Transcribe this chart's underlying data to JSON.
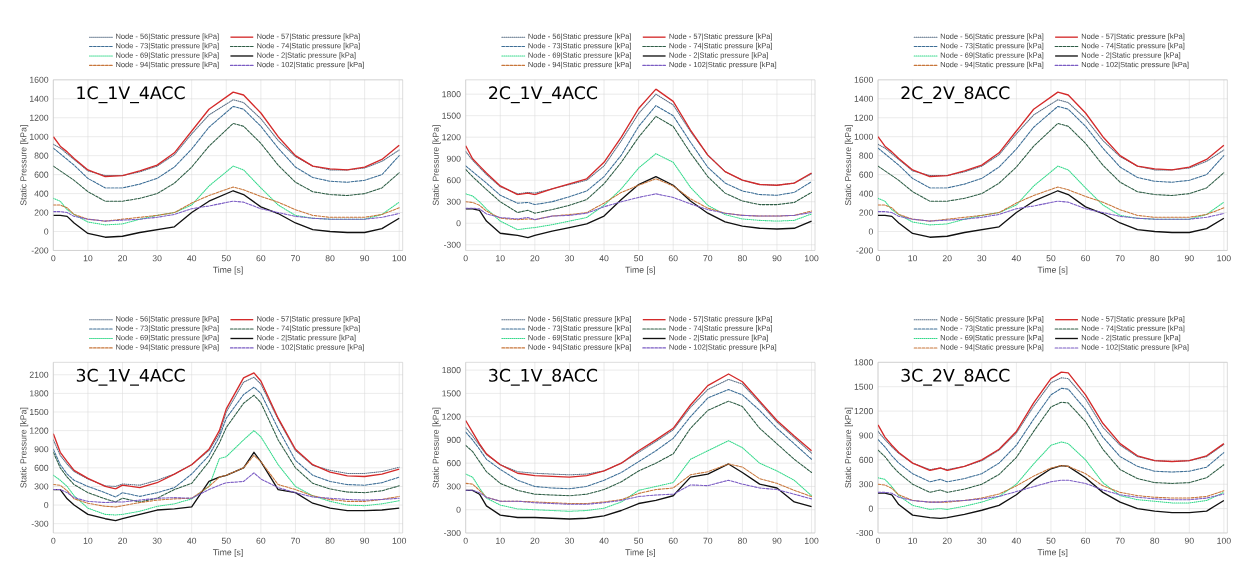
{
  "chart_data": [
    {
      "type": "line",
      "title": "1C_1V_4ACC",
      "xlabel": "Time [s]",
      "ylabel": "Static Pressure [kPa]",
      "grid": true,
      "legend": "top",
      "xlim": [
        0,
        101
      ],
      "ylim": [
        -200,
        1600
      ],
      "xticks": [
        0,
        10,
        20,
        30,
        40,
        50,
        60,
        70,
        80,
        90,
        100
      ],
      "yticks": [
        -200,
        0,
        200,
        400,
        600,
        800,
        1000,
        1200,
        1400,
        1600
      ],
      "x": [
        0,
        2,
        4,
        6,
        10,
        15,
        20,
        25,
        30,
        35,
        40,
        45,
        52,
        55,
        60,
        65,
        70,
        75,
        80,
        85,
        90,
        95,
        100
      ],
      "series": [
        {
          "name": "Node - 56|Static pressure [kPa]",
          "color": "#5a6f86",
          "line_style": "dotted",
          "values": [
            920,
            880,
            820,
            760,
            640,
            590,
            590,
            630,
            690,
            810,
            1030,
            1230,
            1390,
            1360,
            1190,
            960,
            790,
            690,
            650,
            650,
            670,
            740,
            860
          ]
        },
        {
          "name": "Node - 57|Static pressure [kPa]",
          "color": "#d42a2a",
          "line_style": "solid",
          "values": [
            1000,
            900,
            840,
            770,
            650,
            580,
            590,
            640,
            700,
            830,
            1060,
            1290,
            1470,
            1440,
            1250,
            1000,
            800,
            690,
            660,
            650,
            680,
            760,
            910
          ]
        },
        {
          "name": "Node - 73|Static pressure [kPa]",
          "color": "#3d6e96",
          "line_style": "dashed",
          "values": [
            880,
            820,
            760,
            700,
            560,
            460,
            460,
            500,
            560,
            680,
            870,
            1100,
            1320,
            1290,
            1110,
            880,
            680,
            570,
            530,
            520,
            540,
            600,
            800
          ]
        },
        {
          "name": "Node - 74|Static pressure [kPa]",
          "color": "#2e5d45",
          "line_style": "dashed",
          "values": [
            690,
            640,
            590,
            540,
            420,
            320,
            320,
            350,
            400,
            510,
            680,
            900,
            1140,
            1110,
            930,
            700,
            520,
            420,
            390,
            380,
            400,
            460,
            620
          ]
        },
        {
          "name": "Node - 69|Static pressure [kPa]",
          "color": "#33d98a",
          "line_style": "dotted",
          "values": [
            350,
            320,
            230,
            180,
            100,
            70,
            80,
            130,
            170,
            200,
            280,
            480,
            690,
            650,
            460,
            280,
            170,
            140,
            130,
            130,
            130,
            180,
            310
          ]
        },
        {
          "name": "Node - 2|Static pressure [kPa]",
          "color": "#111111",
          "line_style": "solid",
          "values": [
            170,
            170,
            160,
            90,
            -20,
            -60,
            -50,
            -10,
            20,
            50,
            200,
            320,
            430,
            390,
            260,
            190,
            90,
            20,
            0,
            -10,
            -10,
            30,
            140
          ]
        },
        {
          "name": "Node - 94|Static pressure [kPa]",
          "color": "#c8763a",
          "line_style": "dashed",
          "values": [
            280,
            280,
            250,
            180,
            130,
            110,
            130,
            150,
            170,
            200,
            300,
            380,
            470,
            440,
            370,
            310,
            230,
            170,
            150,
            150,
            150,
            180,
            250
          ]
        },
        {
          "name": "Node - 102|Static pressure [kPa]",
          "color": "#7b5cc4",
          "line_style": "dashed",
          "values": [
            210,
            210,
            200,
            160,
            130,
            110,
            120,
            130,
            150,
            180,
            240,
            270,
            320,
            310,
            240,
            200,
            160,
            140,
            130,
            130,
            130,
            150,
            190
          ]
        }
      ]
    },
    {
      "type": "line",
      "title": "2C_1V_4ACC",
      "xlabel": "Time [s]",
      "ylabel": "Static Pressure [kPa]",
      "grid": true,
      "legend": "top",
      "xlim": [
        0,
        101
      ],
      "ylim": [
        -380,
        2000
      ],
      "xticks": [
        0,
        10,
        20,
        30,
        40,
        50,
        60,
        70,
        80,
        90,
        100
      ],
      "yticks": [
        -300,
        0,
        300,
        600,
        900,
        1200,
        1500,
        1800
      ],
      "x": [
        0,
        2,
        4,
        6,
        10,
        15,
        18,
        20,
        25,
        30,
        35,
        40,
        45,
        50,
        55,
        60,
        65,
        70,
        75,
        80,
        85,
        90,
        95,
        100
      ],
      "series": [
        {
          "name": "Node - 56|Static pressure [kPa]",
          "color": "#5a6f86",
          "line_style": "dotted",
          "values": [
            1000,
            880,
            780,
            680,
            510,
            410,
            430,
            420,
            480,
            540,
            600,
            800,
            1150,
            1530,
            1800,
            1650,
            1280,
            950,
            720,
            600,
            540,
            530,
            560,
            690
          ]
        },
        {
          "name": "Node - 57|Static pressure [kPa]",
          "color": "#d42a2a",
          "line_style": "solid",
          "values": [
            1080,
            900,
            800,
            700,
            520,
            400,
            420,
            400,
            480,
            550,
            620,
            850,
            1200,
            1600,
            1870,
            1700,
            1300,
            950,
            720,
            600,
            540,
            530,
            560,
            700
          ]
        },
        {
          "name": "Node - 73|Static pressure [kPa]",
          "color": "#3d6e96",
          "line_style": "dashed",
          "values": [
            800,
            720,
            640,
            560,
            390,
            280,
            290,
            260,
            300,
            370,
            450,
            650,
            950,
            1350,
            1640,
            1500,
            1130,
            780,
            560,
            450,
            400,
            390,
            430,
            580
          ]
        },
        {
          "name": "Node - 74|Static pressure [kPa]",
          "color": "#2e5d45",
          "line_style": "dashed",
          "values": [
            750,
            650,
            560,
            470,
            300,
            150,
            180,
            140,
            190,
            250,
            330,
            550,
            850,
            1200,
            1490,
            1350,
            980,
            650,
            420,
            310,
            260,
            260,
            290,
            430
          ]
        },
        {
          "name": "Node - 69|Static pressure [kPa]",
          "color": "#33d98a",
          "line_style": "dotted",
          "values": [
            410,
            380,
            300,
            200,
            30,
            -90,
            -70,
            -60,
            -20,
            30,
            80,
            250,
            480,
            770,
            970,
            850,
            500,
            250,
            120,
            60,
            40,
            30,
            40,
            130
          ]
        },
        {
          "name": "Node - 2|Static pressure [kPa]",
          "color": "#111111",
          "line_style": "solid",
          "values": [
            200,
            200,
            180,
            30,
            -140,
            -170,
            -200,
            -170,
            -110,
            -60,
            -10,
            100,
            330,
            540,
            650,
            530,
            310,
            140,
            20,
            -40,
            -70,
            -80,
            -70,
            30
          ]
        },
        {
          "name": "Node - 94|Static pressure [kPa]",
          "color": "#c8763a",
          "line_style": "dashed",
          "values": [
            300,
            290,
            250,
            170,
            70,
            50,
            60,
            50,
            100,
            120,
            150,
            280,
            430,
            530,
            620,
            520,
            340,
            210,
            140,
            110,
            100,
            100,
            110,
            170
          ]
        },
        {
          "name": "Node - 102|Static pressure [kPa]",
          "color": "#7b5cc4",
          "line_style": "dashed",
          "values": [
            210,
            210,
            200,
            130,
            80,
            60,
            80,
            50,
            100,
            110,
            140,
            230,
            300,
            360,
            410,
            360,
            270,
            190,
            140,
            110,
            100,
            100,
            110,
            150
          ]
        }
      ]
    },
    {
      "type": "line",
      "title": "2C_2V_8ACC",
      "xlabel": "Time [s]",
      "ylabel": "Static Pressure [kPa]",
      "grid": true,
      "legend": "top",
      "xlim": [
        0,
        101
      ],
      "ylim": [
        -200,
        1600
      ],
      "xticks": [
        0,
        10,
        20,
        30,
        40,
        50,
        60,
        70,
        80,
        90,
        100
      ],
      "yticks": [
        -200,
        0,
        200,
        400,
        600,
        800,
        1000,
        1200,
        1400,
        1600
      ],
      "x": [
        0,
        2,
        4,
        6,
        10,
        15,
        20,
        25,
        30,
        35,
        40,
        45,
        52,
        55,
        60,
        65,
        70,
        75,
        80,
        85,
        90,
        95,
        100
      ],
      "series": [
        {
          "name": "Node - 56|Static pressure [kPa]",
          "color": "#5a6f86",
          "line_style": "dotted",
          "values": [
            920,
            880,
            820,
            760,
            640,
            590,
            590,
            630,
            690,
            810,
            1030,
            1230,
            1390,
            1360,
            1190,
            960,
            790,
            690,
            650,
            650,
            670,
            740,
            860
          ]
        },
        {
          "name": "Node - 57|Static pressure [kPa]",
          "color": "#d42a2a",
          "line_style": "solid",
          "values": [
            1000,
            900,
            840,
            770,
            650,
            580,
            590,
            640,
            700,
            830,
            1060,
            1290,
            1470,
            1440,
            1250,
            1000,
            800,
            690,
            660,
            650,
            680,
            760,
            910
          ]
        },
        {
          "name": "Node - 73|Static pressure [kPa]",
          "color": "#3d6e96",
          "line_style": "dashed",
          "values": [
            880,
            820,
            760,
            700,
            560,
            460,
            460,
            500,
            560,
            680,
            870,
            1100,
            1320,
            1290,
            1110,
            880,
            680,
            570,
            530,
            520,
            540,
            600,
            800
          ]
        },
        {
          "name": "Node - 74|Static pressure [kPa]",
          "color": "#2e5d45",
          "line_style": "dashed",
          "values": [
            690,
            640,
            590,
            540,
            420,
            320,
            320,
            350,
            400,
            510,
            680,
            900,
            1140,
            1110,
            930,
            700,
            520,
            420,
            390,
            380,
            400,
            460,
            620
          ]
        },
        {
          "name": "Node - 69|Static pressure [kPa]",
          "color": "#33d98a",
          "line_style": "dotted",
          "values": [
            350,
            320,
            230,
            180,
            100,
            70,
            80,
            130,
            170,
            200,
            280,
            480,
            690,
            650,
            460,
            280,
            170,
            140,
            130,
            130,
            130,
            180,
            310
          ]
        },
        {
          "name": "Node - 2|Static pressure [kPa]",
          "color": "#111111",
          "line_style": "solid",
          "values": [
            170,
            170,
            160,
            90,
            -20,
            -60,
            -50,
            -10,
            20,
            50,
            200,
            320,
            430,
            390,
            260,
            190,
            90,
            20,
            0,
            -10,
            -10,
            30,
            140
          ]
        },
        {
          "name": "Node - 94|Static pressure [kPa]",
          "color": "#c8763a",
          "line_style": "dashed",
          "values": [
            280,
            280,
            250,
            180,
            130,
            110,
            130,
            150,
            170,
            200,
            300,
            380,
            470,
            440,
            370,
            310,
            230,
            170,
            150,
            150,
            150,
            180,
            250
          ]
        },
        {
          "name": "Node - 102|Static pressure [kPa]",
          "color": "#7b5cc4",
          "line_style": "dashed",
          "values": [
            210,
            210,
            200,
            160,
            130,
            110,
            120,
            130,
            150,
            180,
            240,
            270,
            320,
            310,
            240,
            200,
            160,
            140,
            130,
            130,
            130,
            150,
            190
          ]
        }
      ]
    },
    {
      "type": "line",
      "title": "3C_1V_4ACC",
      "xlabel": "Time [s]",
      "ylabel": "Static Pressure [kPa]",
      "grid": true,
      "legend": "top",
      "xlim": [
        0,
        101
      ],
      "ylim": [
        -450,
        2300
      ],
      "xticks": [
        0,
        10,
        20,
        30,
        40,
        50,
        60,
        70,
        80,
        90,
        100
      ],
      "yticks": [
        -300,
        0,
        300,
        600,
        900,
        1200,
        1500,
        1800,
        2100
      ],
      "x": [
        0,
        2,
        4,
        6,
        10,
        15,
        18,
        20,
        25,
        30,
        35,
        40,
        45,
        48,
        50,
        55,
        58,
        60,
        65,
        70,
        75,
        80,
        85,
        90,
        95,
        100
      ],
      "series": [
        {
          "name": "Node - 56|Static pressure [kPa]",
          "color": "#5a6f86",
          "line_style": "dotted",
          "values": [
            1050,
            800,
            660,
            540,
            420,
            310,
            300,
            340,
            320,
            400,
            500,
            650,
            880,
            1150,
            1500,
            1980,
            2060,
            1950,
            1380,
            880,
            640,
            560,
            510,
            510,
            540,
            610
          ]
        },
        {
          "name": "Node - 57|Static pressure [kPa]",
          "color": "#d42a2a",
          "line_style": "solid",
          "values": [
            1150,
            850,
            700,
            560,
            430,
            300,
            260,
            320,
            280,
            360,
            500,
            650,
            900,
            1200,
            1550,
            2050,
            2130,
            2000,
            1400,
            900,
            650,
            530,
            470,
            460,
            500,
            580
          ]
        },
        {
          "name": "Node - 73|Static pressure [kPa]",
          "color": "#3d6e96",
          "line_style": "dashed",
          "values": [
            900,
            650,
            500,
            400,
            300,
            200,
            130,
            200,
            140,
            200,
            280,
            500,
            800,
            1100,
            1400,
            1780,
            1900,
            1800,
            1230,
            720,
            480,
            380,
            330,
            320,
            360,
            450
          ]
        },
        {
          "name": "Node - 74|Static pressure [kPa]",
          "color": "#2e5d45",
          "line_style": "dashed",
          "values": [
            850,
            600,
            450,
            330,
            200,
            100,
            50,
            110,
            50,
            110,
            250,
            350,
            700,
            1000,
            1250,
            1640,
            1770,
            1650,
            1050,
            600,
            350,
            260,
            210,
            200,
            230,
            310
          ]
        },
        {
          "name": "Node - 69|Static pressure [kPa]",
          "color": "#33d98a",
          "line_style": "dotted",
          "values": [
            480,
            400,
            300,
            150,
            -50,
            -150,
            -160,
            -150,
            -100,
            -20,
            20,
            100,
            300,
            750,
            780,
            1050,
            1200,
            1100,
            650,
            300,
            150,
            60,
            0,
            -10,
            20,
            70
          ]
        },
        {
          "name": "Node - 2|Static pressure [kPa]",
          "color": "#111111",
          "line_style": "solid",
          "values": [
            250,
            250,
            100,
            0,
            -150,
            -220,
            -250,
            -220,
            -150,
            -80,
            -60,
            -30,
            380,
            450,
            480,
            600,
            850,
            700,
            250,
            200,
            30,
            -50,
            -90,
            -90,
            -80,
            -50
          ]
        },
        {
          "name": "Node - 94|Static pressure [kPa]",
          "color": "#c8763a",
          "line_style": "dashed",
          "values": [
            330,
            320,
            230,
            100,
            30,
            -20,
            -30,
            -10,
            40,
            80,
            100,
            110,
            300,
            450,
            480,
            600,
            800,
            700,
            330,
            250,
            150,
            90,
            60,
            60,
            90,
            140
          ]
        },
        {
          "name": "Node - 102|Static pressure [kPa]",
          "color": "#7b5cc4",
          "line_style": "dashed",
          "values": [
            250,
            250,
            200,
            120,
            60,
            40,
            50,
            50,
            80,
            110,
            120,
            110,
            250,
            320,
            360,
            380,
            520,
            420,
            280,
            200,
            130,
            110,
            90,
            80,
            90,
            110
          ]
        }
      ]
    },
    {
      "type": "line",
      "title": "3C_1V_8ACC",
      "xlabel": "Time [s]",
      "ylabel": "Static Pressure [kPa]",
      "grid": true,
      "legend": "top",
      "xlim": [
        0,
        101
      ],
      "ylim": [
        -300,
        1900
      ],
      "xticks": [
        0,
        10,
        20,
        30,
        40,
        50,
        60,
        70,
        80,
        90,
        100
      ],
      "yticks": [
        -300,
        0,
        300,
        600,
        900,
        1200,
        1500,
        1800
      ],
      "x": [
        0,
        2,
        4,
        6,
        10,
        15,
        20,
        25,
        30,
        35,
        40,
        45,
        50,
        55,
        60,
        65,
        70,
        76,
        80,
        85,
        90,
        95,
        100
      ],
      "series": [
        {
          "name": "Node - 56|Static pressure [kPa]",
          "color": "#5a6f86",
          "line_style": "dotted",
          "values": [
            1060,
            950,
            830,
            710,
            580,
            490,
            470,
            460,
            450,
            460,
            500,
            600,
            740,
            880,
            1030,
            1320,
            1550,
            1680,
            1620,
            1380,
            1130,
            930,
            730
          ]
        },
        {
          "name": "Node - 57|Static pressure [kPa]",
          "color": "#d42a2a",
          "line_style": "solid",
          "values": [
            1150,
            1000,
            850,
            720,
            580,
            470,
            440,
            430,
            420,
            440,
            500,
            600,
            760,
            900,
            1050,
            1350,
            1600,
            1750,
            1650,
            1400,
            1150,
            950,
            760
          ]
        },
        {
          "name": "Node - 73|Static pressure [kPa]",
          "color": "#3d6e96",
          "line_style": "dashed",
          "values": [
            1000,
            900,
            780,
            650,
            520,
            380,
            300,
            280,
            270,
            300,
            380,
            480,
            620,
            760,
            920,
            1200,
            1440,
            1550,
            1480,
            1280,
            1050,
            850,
            650
          ]
        },
        {
          "name": "Node - 74|Static pressure [kPa]",
          "color": "#2e5d45",
          "line_style": "dashed",
          "values": [
            830,
            750,
            620,
            490,
            340,
            250,
            200,
            190,
            180,
            200,
            260,
            360,
            500,
            600,
            720,
            1050,
            1280,
            1400,
            1330,
            1050,
            850,
            650,
            480
          ]
        },
        {
          "name": "Node - 69|Static pressure [kPa]",
          "color": "#33d98a",
          "line_style": "dotted",
          "values": [
            460,
            420,
            280,
            150,
            60,
            10,
            0,
            -10,
            -20,
            -10,
            20,
            100,
            250,
            300,
            350,
            650,
            760,
            890,
            800,
            600,
            500,
            380,
            180
          ]
        },
        {
          "name": "Node - 2|Static pressure [kPa]",
          "color": "#111111",
          "line_style": "solid",
          "values": [
            250,
            250,
            200,
            50,
            -70,
            -100,
            -100,
            -110,
            -120,
            -110,
            -80,
            -10,
            80,
            120,
            180,
            420,
            460,
            590,
            480,
            330,
            280,
            100,
            40
          ]
        },
        {
          "name": "Node - 94|Static pressure [kPa]",
          "color": "#c8763a",
          "line_style": "dashed",
          "values": [
            340,
            330,
            250,
            160,
            110,
            110,
            100,
            90,
            80,
            80,
            100,
            130,
            210,
            260,
            280,
            450,
            490,
            590,
            550,
            400,
            340,
            250,
            170
          ]
        },
        {
          "name": "Node - 102|Static pressure [kPa]",
          "color": "#7b5cc4",
          "line_style": "dashed",
          "values": [
            250,
            250,
            220,
            160,
            110,
            110,
            90,
            80,
            70,
            70,
            90,
            120,
            170,
            190,
            200,
            320,
            310,
            380,
            330,
            280,
            260,
            200,
            140
          ]
        }
      ]
    },
    {
      "type": "line",
      "title": "3C_2V_8ACC",
      "xlabel": "Time [s]",
      "ylabel": "Static Pressure [kPa]",
      "grid": true,
      "legend": "top",
      "xlim": [
        0,
        101
      ],
      "ylim": [
        -300,
        1800
      ],
      "xticks": [
        0,
        10,
        20,
        30,
        40,
        50,
        60,
        70,
        80,
        90,
        100
      ],
      "yticks": [
        -300,
        0,
        300,
        600,
        900,
        1200,
        1500,
        1800
      ],
      "x": [
        0,
        2,
        4,
        6,
        10,
        15,
        18,
        20,
        25,
        30,
        35,
        40,
        45,
        50,
        53,
        55,
        60,
        65,
        70,
        75,
        80,
        85,
        90,
        95,
        100
      ],
      "series": [
        {
          "name": "Node - 56|Static pressure [kPa]",
          "color": "#5a6f86",
          "line_style": "dotted",
          "values": [
            950,
            850,
            760,
            680,
            560,
            480,
            500,
            480,
            520,
            590,
            720,
            930,
            1260,
            1550,
            1610,
            1600,
            1350,
            1000,
            780,
            640,
            590,
            580,
            590,
            640,
            790
          ]
        },
        {
          "name": "Node - 57|Static pressure [kPa]",
          "color": "#d42a2a",
          "line_style": "solid",
          "values": [
            1030,
            880,
            780,
            690,
            560,
            470,
            500,
            470,
            520,
            600,
            730,
            950,
            1300,
            1600,
            1680,
            1670,
            1400,
            1050,
            800,
            650,
            590,
            580,
            590,
            650,
            800
          ]
        },
        {
          "name": "Node - 73|Static pressure [kPa]",
          "color": "#3d6e96",
          "line_style": "dashed",
          "values": [
            850,
            760,
            650,
            560,
            430,
            330,
            360,
            330,
            370,
            430,
            560,
            780,
            1100,
            1400,
            1480,
            1470,
            1220,
            880,
            640,
            520,
            460,
            450,
            460,
            510,
            690
          ]
        },
        {
          "name": "Node - 74|Static pressure [kPa]",
          "color": "#2e5d45",
          "line_style": "dashed",
          "values": [
            720,
            640,
            530,
            440,
            300,
            200,
            230,
            200,
            240,
            300,
            420,
            630,
            950,
            1250,
            1310,
            1300,
            1070,
            730,
            480,
            370,
            320,
            310,
            320,
            380,
            540
          ]
        },
        {
          "name": "Node - 69|Static pressure [kPa]",
          "color": "#33d98a",
          "line_style": "dotted",
          "values": [
            380,
            360,
            270,
            160,
            40,
            -10,
            0,
            -10,
            30,
            80,
            150,
            300,
            550,
            780,
            820,
            800,
            600,
            320,
            160,
            110,
            90,
            70,
            70,
            100,
            200
          ]
        },
        {
          "name": "Node - 2|Static pressure [kPa]",
          "color": "#111111",
          "line_style": "solid",
          "values": [
            190,
            190,
            170,
            50,
            -80,
            -110,
            -120,
            -110,
            -70,
            -20,
            40,
            170,
            350,
            490,
            530,
            520,
            380,
            200,
            80,
            0,
            -30,
            -50,
            -50,
            -30,
            100
          ]
        },
        {
          "name": "Node - 94|Static pressure [kPa]",
          "color": "#c8763a",
          "line_style": "dashed",
          "values": [
            300,
            290,
            250,
            170,
            100,
            80,
            80,
            80,
            100,
            130,
            180,
            280,
            400,
            500,
            530,
            520,
            430,
            280,
            200,
            160,
            140,
            130,
            130,
            150,
            220
          ]
        },
        {
          "name": "Node - 102|Static pressure [kPa]",
          "color": "#7b5cc4",
          "line_style": "dashed",
          "values": [
            200,
            200,
            190,
            140,
            100,
            80,
            80,
            90,
            100,
            120,
            150,
            210,
            270,
            330,
            350,
            350,
            310,
            230,
            170,
            140,
            120,
            110,
            110,
            130,
            180
          ]
        }
      ]
    }
  ]
}
